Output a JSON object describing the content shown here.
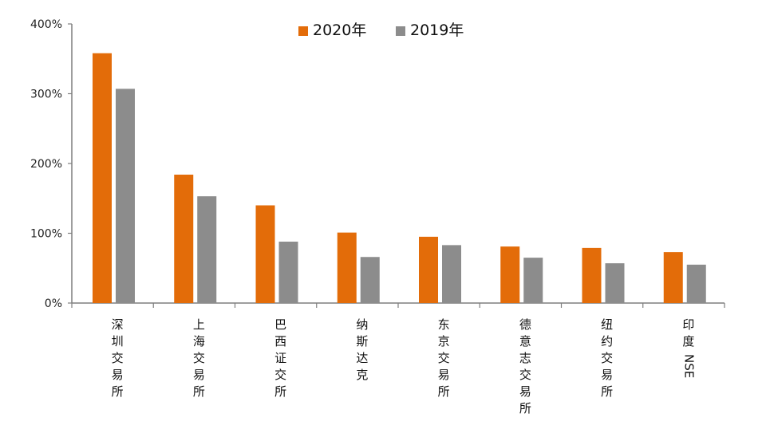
{
  "chart_data": {
    "type": "bar",
    "title": "",
    "xlabel": "",
    "ylabel": "",
    "ylim": [
      0,
      400
    ],
    "yticks": [
      0,
      100,
      200,
      300,
      400
    ],
    "ytick_labels": [
      "0%",
      "100%",
      "200%",
      "300%",
      "400%"
    ],
    "categories": [
      "深圳交易所",
      "上海交易所",
      "巴西证交所",
      "纳斯达克",
      "东京交易所",
      "德意志交易所",
      "纽约交易所",
      "印度NSE"
    ],
    "series": [
      {
        "name": "2020年",
        "color": "#E36C09",
        "values": [
          358,
          184,
          140,
          101,
          95,
          81,
          79,
          73
        ]
      },
      {
        "name": "2019年",
        "color": "#8C8C8C",
        "values": [
          307,
          153,
          88,
          66,
          83,
          65,
          57,
          55
        ]
      }
    ],
    "legend_position": "top-center",
    "grid": false
  }
}
